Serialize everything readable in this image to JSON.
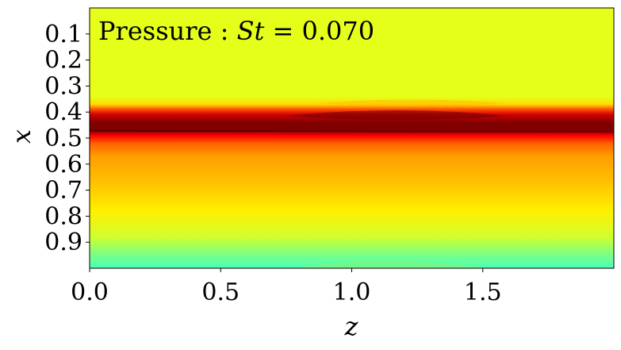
{
  "chart_data": {
    "type": "heatmap",
    "annotation": {
      "prefix": "Pressure : ",
      "symbol": "St",
      "equals": " = ",
      "value": "0.070"
    },
    "xlabel": "z",
    "ylabel": "x",
    "xlim": [
      0.0,
      2.0
    ],
    "ylim": [
      1.0,
      0.0
    ],
    "xticks": [
      0.0,
      0.5,
      1.0,
      1.5
    ],
    "xtick_labels": [
      "0.0",
      "0.5",
      "1.0",
      "1.5"
    ],
    "yticks": [
      0.1,
      0.2,
      0.3,
      0.4,
      0.5,
      0.6,
      0.7,
      0.8,
      0.9
    ],
    "ytick_labels": [
      "0.1",
      "0.2",
      "0.3",
      "0.4",
      "0.5",
      "0.6",
      "0.7",
      "0.8",
      "0.9"
    ],
    "colormap": "jet",
    "profile_along_x": [
      {
        "x": 0.0,
        "level": 0.6
      },
      {
        "x": 0.34,
        "level": 0.6
      },
      {
        "x": 0.37,
        "level": 0.66
      },
      {
        "x": 0.39,
        "level": 0.8
      },
      {
        "x": 0.41,
        "level": 0.92
      },
      {
        "x": 0.44,
        "level": 1.0
      },
      {
        "x": 0.47,
        "level": 1.0
      },
      {
        "x": 0.49,
        "level": 0.88
      },
      {
        "x": 0.52,
        "level": 0.78
      },
      {
        "x": 0.57,
        "level": 0.72
      },
      {
        "x": 0.66,
        "level": 0.69
      },
      {
        "x": 0.78,
        "level": 0.64
      },
      {
        "x": 0.88,
        "level": 0.58
      },
      {
        "x": 0.96,
        "level": 0.48
      },
      {
        "x": 1.0,
        "level": 0.45
      }
    ],
    "colors": {
      "background": "#7df57d",
      "band_peak": "#8b0000",
      "band_red": "#e00000",
      "band_orange": "#ff8c00",
      "band_yellow": "#f5f500",
      "lower_cyan": "#3cf5c8"
    }
  }
}
